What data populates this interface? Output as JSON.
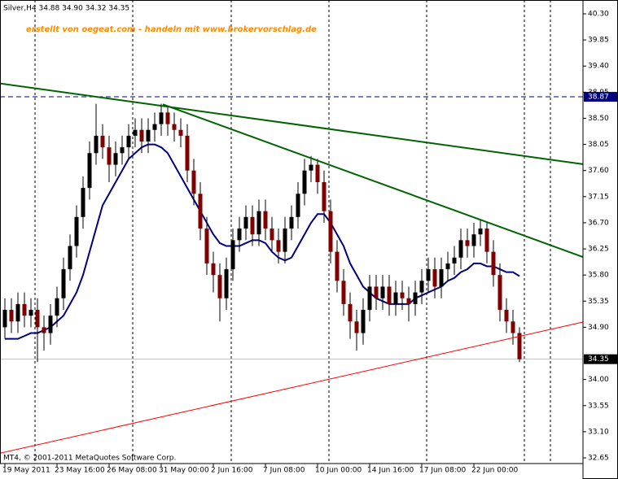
{
  "chart_data": {
    "type": "candlestick",
    "header": "Silver,H4  34.88 34.90 34.32 34.35",
    "annotation": "erstellt von oegeat.com - handeln mit www.brokervorschlag.de",
    "footer": "MT4, © 2001-2011 MetaQuotes Software Corp.",
    "categories": [
      "19 May 2011",
      null,
      null,
      null,
      null,
      null,
      null,
      null,
      "23 May 16:00",
      null,
      null,
      null,
      null,
      null,
      null,
      null,
      "26 May 08:00",
      null,
      null,
      null,
      null,
      null,
      null,
      null,
      "31 May 00:00",
      null,
      null,
      null,
      null,
      null,
      null,
      null,
      "2 Jun 16:00",
      null,
      null,
      null,
      null,
      null,
      null,
      null,
      "7 Jun 08:00",
      null,
      null,
      null,
      null,
      null,
      null,
      null,
      "10 Jun 00:00",
      null,
      null,
      null,
      null,
      null,
      null,
      null,
      "14 Jun 16:00",
      null,
      null,
      null,
      null,
      null,
      null,
      null,
      "17 Jun 08:00",
      null,
      null,
      null,
      null,
      null,
      null,
      null,
      "22 Jun 00:00",
      null,
      null,
      null,
      null,
      null,
      null,
      null
    ],
    "open": [
      34.9,
      35.2,
      35.0,
      35.3,
      35.1,
      35.2,
      34.9,
      34.8,
      35.1,
      35.4,
      35.9,
      36.3,
      36.8,
      37.3,
      37.9,
      38.2,
      38.0,
      37.7,
      37.9,
      38.0,
      38.2,
      38.3,
      38.1,
      38.3,
      38.4,
      38.6,
      38.4,
      38.3,
      38.2,
      37.6,
      37.2,
      36.6,
      36.0,
      35.8,
      35.4,
      35.9,
      36.4,
      36.6,
      36.8,
      36.5,
      36.9,
      36.6,
      36.4,
      36.2,
      36.6,
      36.8,
      37.2,
      37.6,
      37.7,
      37.4,
      36.9,
      36.2,
      35.7,
      35.3,
      35.0,
      34.8,
      35.2,
      35.6,
      35.4,
      35.6,
      35.3,
      35.5,
      35.4,
      35.3,
      35.5,
      35.7,
      35.9,
      35.6,
      35.9,
      36.0,
      36.1,
      36.4,
      36.3,
      36.5,
      36.6,
      36.2,
      35.8,
      35.2,
      35.0,
      34.8
    ],
    "high": [
      35.4,
      35.4,
      35.5,
      35.5,
      35.4,
      35.4,
      35.1,
      35.3,
      35.6,
      36.1,
      36.5,
      37.0,
      37.5,
      38.1,
      38.75,
      38.4,
      38.2,
      38.1,
      38.2,
      38.4,
      38.5,
      38.5,
      38.5,
      38.6,
      38.75,
      38.7,
      38.6,
      38.5,
      38.4,
      37.8,
      37.4,
      36.8,
      36.2,
      36.0,
      36.1,
      36.6,
      36.8,
      37.0,
      37.0,
      37.1,
      37.1,
      36.8,
      36.6,
      36.8,
      37.0,
      37.4,
      37.8,
      37.85,
      37.8,
      37.6,
      37.1,
      36.4,
      35.9,
      35.5,
      35.2,
      35.4,
      35.8,
      35.8,
      35.8,
      35.8,
      35.7,
      35.7,
      35.6,
      35.7,
      35.9,
      36.1,
      36.1,
      36.1,
      36.2,
      36.3,
      36.6,
      36.6,
      36.7,
      36.75,
      36.7,
      36.4,
      36.0,
      35.4,
      35.2,
      34.9
    ],
    "low": [
      34.7,
      34.8,
      34.8,
      34.9,
      34.9,
      34.3,
      34.5,
      34.6,
      34.9,
      35.2,
      35.7,
      36.1,
      36.6,
      37.1,
      37.7,
      37.8,
      37.4,
      37.5,
      37.7,
      37.8,
      38.0,
      37.9,
      37.9,
      38.1,
      38.2,
      38.2,
      38.1,
      38.0,
      37.4,
      37.0,
      36.4,
      35.8,
      35.5,
      35.0,
      35.2,
      35.7,
      36.2,
      36.4,
      36.3,
      36.3,
      36.4,
      36.2,
      36.0,
      36.0,
      36.4,
      36.6,
      37.0,
      37.4,
      37.2,
      36.7,
      36.0,
      35.5,
      35.1,
      34.7,
      34.5,
      34.6,
      35.0,
      35.2,
      35.2,
      35.1,
      35.1,
      35.2,
      35.0,
      35.1,
      35.3,
      35.5,
      35.4,
      35.4,
      35.7,
      35.8,
      35.9,
      36.1,
      36.1,
      36.3,
      36.0,
      35.6,
      35.0,
      34.8,
      34.6,
      34.3
    ],
    "close": [
      35.2,
      35.0,
      35.3,
      35.1,
      35.2,
      34.9,
      34.8,
      35.1,
      35.4,
      35.9,
      36.3,
      36.8,
      37.3,
      37.9,
      38.2,
      38.0,
      37.7,
      37.9,
      38.0,
      38.2,
      38.3,
      38.1,
      38.3,
      38.4,
      38.6,
      38.4,
      38.3,
      38.2,
      37.6,
      37.2,
      36.6,
      36.0,
      35.8,
      35.4,
      35.9,
      36.4,
      36.6,
      36.8,
      36.5,
      36.9,
      36.6,
      36.4,
      36.2,
      36.6,
      36.8,
      37.2,
      37.6,
      37.7,
      37.4,
      36.9,
      36.2,
      35.7,
      35.3,
      35.0,
      34.8,
      35.2,
      35.6,
      35.4,
      35.6,
      35.3,
      35.5,
      35.4,
      35.3,
      35.5,
      35.7,
      35.9,
      35.6,
      35.9,
      36.0,
      36.1,
      36.4,
      36.3,
      36.5,
      36.6,
      36.2,
      35.8,
      35.2,
      35.0,
      34.8,
      34.35
    ],
    "up_color": "#000000",
    "down_color": "#800000",
    "ma": {
      "color": "#000080",
      "values": [
        34.7,
        34.7,
        34.7,
        34.75,
        34.8,
        34.8,
        34.85,
        34.9,
        35.0,
        35.1,
        35.3,
        35.5,
        35.8,
        36.2,
        36.6,
        37.0,
        37.2,
        37.4,
        37.6,
        37.8,
        37.9,
        38.0,
        38.05,
        38.05,
        38.0,
        37.9,
        37.7,
        37.5,
        37.3,
        37.1,
        36.9,
        36.7,
        36.5,
        36.35,
        36.3,
        36.3,
        36.3,
        36.35,
        36.4,
        36.4,
        36.35,
        36.2,
        36.1,
        36.05,
        36.1,
        36.3,
        36.5,
        36.7,
        36.85,
        36.85,
        36.7,
        36.5,
        36.3,
        36.0,
        35.8,
        35.6,
        35.5,
        35.4,
        35.35,
        35.3,
        35.3,
        35.3,
        35.3,
        35.4,
        35.45,
        35.5,
        35.55,
        35.6,
        35.7,
        35.75,
        35.85,
        35.9,
        36.0,
        36.0,
        35.95,
        35.95,
        35.9,
        35.85,
        35.85,
        35.78
      ]
    },
    "trendlines": [
      {
        "x": [
          -0.75,
          88.75
        ],
        "y": [
          39.1,
          37.71
        ],
        "color": "#006400"
      },
      {
        "x": [
          24.25,
          88.75
        ],
        "y": [
          38.74,
          36.11
        ],
        "color": "#006400"
      },
      {
        "x": [
          -0.75,
          88.75
        ],
        "y": [
          32.73,
          34.99
        ],
        "color": "#ff0000"
      }
    ],
    "levels": [
      {
        "value": 38.87,
        "color": "#000080",
        "dashed": true
      },
      {
        "value": 34.35,
        "color": "#c0c0c0",
        "dashed": false
      }
    ],
    "ylim": [
      32.552,
      40.538
    ],
    "yticks": [
      {
        "value": 40.3,
        "label": "40.30"
      },
      {
        "value": 39.85,
        "label": "39.85"
      },
      {
        "value": 39.4,
        "label": "39.40"
      },
      {
        "value": 38.95,
        "label": "38.95"
      },
      {
        "value": 38.5,
        "label": "38.50"
      },
      {
        "value": 38.05,
        "label": "38.05"
      },
      {
        "value": 37.6,
        "label": "37.60"
      },
      {
        "value": 37.15,
        "label": "37.15"
      },
      {
        "value": 36.7,
        "label": "36.70"
      },
      {
        "value": 36.25,
        "label": "36.25"
      },
      {
        "value": 35.8,
        "label": "35.80"
      },
      {
        "value": 35.35,
        "label": "35.35"
      },
      {
        "value": 34.9,
        "label": "34.90"
      },
      {
        "value": 34.0,
        "label": "34.00"
      },
      {
        "value": 33.55,
        "label": "33.55"
      },
      {
        "value": 33.1,
        "label": "33.10"
      },
      {
        "value": 32.65,
        "label": "32.65"
      }
    ]
  }
}
